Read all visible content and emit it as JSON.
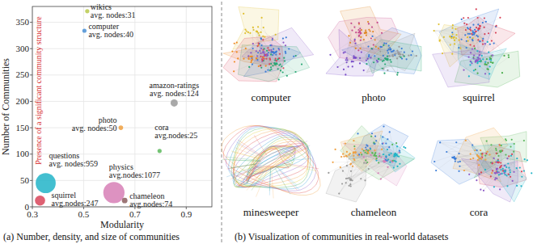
{
  "chart_data": {
    "type": "scatter",
    "caption": "(a) Number, density, and size of communities",
    "x_label": "Modularity",
    "y_label": "Number of Communities",
    "annotation": "Presence of a significant community structure",
    "categories": [
      "wikics",
      "computer",
      "amazon-ratings",
      "photo",
      "cora",
      "questions",
      "squirrel",
      "physics",
      "chameleon"
    ],
    "x": [
      0.514,
      0.503,
      0.853,
      0.645,
      0.796,
      0.352,
      0.33,
      0.618,
      0.66
    ],
    "values": [
      371,
      334,
      197,
      150,
      106,
      45,
      12,
      27,
      12
    ],
    "sizes": [
      31,
      40,
      124,
      50,
      25,
      959,
      247,
      1077,
      74
    ],
    "size_labels": [
      "avg. nodes:31",
      "avg. nodes:40",
      "avg. nodes:124",
      "avg. nodes:50",
      "avg.nodes:25",
      "avg. nodes:959",
      "avg.nodes:247",
      "avg.nodes:1077",
      "avg.nodes:74"
    ],
    "colors": [
      "#b9c94c",
      "#4a8fd4",
      "#9a9a9a",
      "#f0a040",
      "#5cb85c",
      "#22b4c8",
      "#d8455a",
      "#d77fb6",
      "#8b5e5e"
    ],
    "xlim": [
      0.3,
      1.0
    ],
    "xticks": [
      0.3,
      0.5,
      0.7,
      0.9
    ],
    "ylim": [
      0,
      380
    ],
    "yticks": [
      0,
      50,
      100,
      150,
      200,
      250,
      300,
      350
    ],
    "grid": true,
    "data_labels": true
  },
  "visualization": {
    "caption": "(b) Visualization of communities in real-world datasets",
    "datasets": [
      "computer",
      "photo",
      "squirrel",
      "minesweeper",
      "chameleon",
      "cora"
    ]
  }
}
